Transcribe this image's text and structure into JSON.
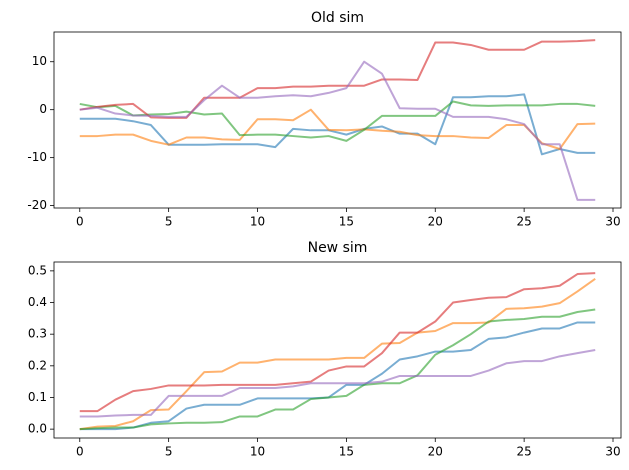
{
  "chart_data": [
    {
      "type": "line",
      "title": "Old sim",
      "x": [
        0,
        1,
        2,
        3,
        4,
        5,
        6,
        7,
        8,
        9,
        10,
        11,
        12,
        13,
        14,
        15,
        16,
        17,
        18,
        19,
        20,
        21,
        22,
        23,
        24,
        25,
        26,
        27,
        28,
        29
      ],
      "xlim": [
        -1.45,
        30.45
      ],
      "xticks": [
        0,
        5,
        10,
        15,
        20,
        25,
        30
      ],
      "ylim": [
        -20.5,
        16.2
      ],
      "yticks": [
        -20,
        -10,
        0,
        10
      ],
      "series": [
        {
          "color": "#1f77b4",
          "values": [
            -1.9,
            -1.9,
            -1.9,
            -2.4,
            -3.2,
            -7.3,
            -7.3,
            -7.3,
            -7.2,
            -7.2,
            -7.2,
            -7.8,
            -4,
            -4.3,
            -4.3,
            -5.2,
            -4,
            -3.5,
            -5,
            -5,
            -7.2,
            2.6,
            2.6,
            2.8,
            2.8,
            3.2,
            -9.3,
            -8.2,
            -9,
            -9
          ]
        },
        {
          "color": "#ff7f0e",
          "values": [
            -5.5,
            -5.5,
            -5.2,
            -5.2,
            -6.5,
            -7.3,
            -5.8,
            -5.8,
            -6.2,
            -6.3,
            -2,
            -2,
            -2.2,
            0,
            -4.2,
            -4.3,
            -4.1,
            -4.4,
            -4.6,
            -5.3,
            -5.5,
            -5.5,
            -5.8,
            -5.9,
            -3.2,
            -3.2,
            -7,
            -8.2,
            -3,
            -2.9
          ]
        },
        {
          "color": "#2ca02c",
          "values": [
            1.2,
            0.5,
            0.8,
            -1.2,
            -1,
            -0.9,
            -0.4,
            -1,
            -0.8,
            -5.3,
            -5.2,
            -5.2,
            -5.5,
            -5.8,
            -5.5,
            -6.5,
            -4.2,
            -1.3,
            -1.3,
            -1.3,
            -1.3,
            1.7,
            0.9,
            0.8,
            0.9,
            0.9,
            0.9,
            1.2,
            1.2,
            0.8
          ]
        },
        {
          "color": "#d62728",
          "values": [
            0,
            0.6,
            1,
            1.2,
            -1.6,
            -1.7,
            -1.7,
            2.5,
            2.5,
            2.5,
            4.5,
            4.5,
            4.8,
            4.8,
            5,
            5,
            5,
            6.3,
            6.3,
            6.2,
            14,
            14,
            13.5,
            12.5,
            12.5,
            12.5,
            14.2,
            14.2,
            14.3,
            14.5
          ]
        },
        {
          "color": "#9467bd",
          "values": [
            0,
            0.4,
            -0.8,
            -1.2,
            -1.3,
            -1.5,
            -1.5,
            2,
            5,
            2.5,
            2.5,
            2.8,
            3,
            2.8,
            3.5,
            4.5,
            10,
            7.5,
            0.3,
            0.2,
            0.2,
            -1.5,
            -1.5,
            -1.5,
            -2,
            -3,
            -7.2,
            -7.2,
            -18.8,
            -18.8
          ]
        }
      ]
    },
    {
      "type": "line",
      "title": "New sim",
      "x": [
        0,
        1,
        2,
        3,
        4,
        5,
        6,
        7,
        8,
        9,
        10,
        11,
        12,
        13,
        14,
        15,
        16,
        17,
        18,
        19,
        20,
        21,
        22,
        23,
        24,
        25,
        26,
        27,
        28,
        29
      ],
      "xlim": [
        -1.45,
        30.45
      ],
      "xticks": [
        0,
        5,
        10,
        15,
        20,
        25,
        30
      ],
      "ylim": [
        -0.028,
        0.528
      ],
      "yticks": [
        {
          "value": 0,
          "label": "0.0"
        },
        0.1,
        0.2,
        0.3,
        0.4,
        0.5
      ],
      "series": [
        {
          "color": "#1f77b4",
          "values": [
            0,
            0,
            0,
            0.005,
            0.02,
            0.025,
            0.065,
            0.077,
            0.077,
            0.077,
            0.097,
            0.097,
            0.097,
            0.097,
            0.1,
            0.14,
            0.14,
            0.175,
            0.22,
            0.23,
            0.245,
            0.245,
            0.25,
            0.285,
            0.29,
            0.305,
            0.318,
            0.318,
            0.337,
            0.337
          ]
        },
        {
          "color": "#ff7f0e",
          "values": [
            0,
            0.008,
            0.01,
            0.025,
            0.06,
            0.062,
            0.12,
            0.18,
            0.182,
            0.21,
            0.21,
            0.22,
            0.22,
            0.22,
            0.22,
            0.225,
            0.225,
            0.27,
            0.272,
            0.305,
            0.31,
            0.335,
            0.335,
            0.337,
            0.38,
            0.382,
            0.387,
            0.398,
            0.435,
            0.475
          ]
        },
        {
          "color": "#2ca02c",
          "values": [
            0,
            0.003,
            0.005,
            0.005,
            0.015,
            0.018,
            0.02,
            0.02,
            0.022,
            0.04,
            0.04,
            0.062,
            0.062,
            0.095,
            0.1,
            0.105,
            0.14,
            0.145,
            0.145,
            0.17,
            0.235,
            0.265,
            0.3,
            0.34,
            0.345,
            0.348,
            0.355,
            0.355,
            0.37,
            0.378
          ]
        },
        {
          "color": "#d62728",
          "values": [
            0.057,
            0.057,
            0.093,
            0.12,
            0.127,
            0.138,
            0.138,
            0.138,
            0.14,
            0.14,
            0.14,
            0.14,
            0.145,
            0.15,
            0.185,
            0.198,
            0.198,
            0.24,
            0.305,
            0.305,
            0.34,
            0.4,
            0.408,
            0.415,
            0.417,
            0.442,
            0.445,
            0.453,
            0.49,
            0.493
          ]
        },
        {
          "color": "#9467bd",
          "values": [
            0.04,
            0.04,
            0.043,
            0.045,
            0.045,
            0.105,
            0.105,
            0.105,
            0.105,
            0.13,
            0.13,
            0.13,
            0.135,
            0.145,
            0.145,
            0.145,
            0.145,
            0.15,
            0.168,
            0.168,
            0.168,
            0.168,
            0.168,
            0.185,
            0.208,
            0.215,
            0.215,
            0.23,
            0.24,
            0.25
          ]
        }
      ]
    }
  ]
}
